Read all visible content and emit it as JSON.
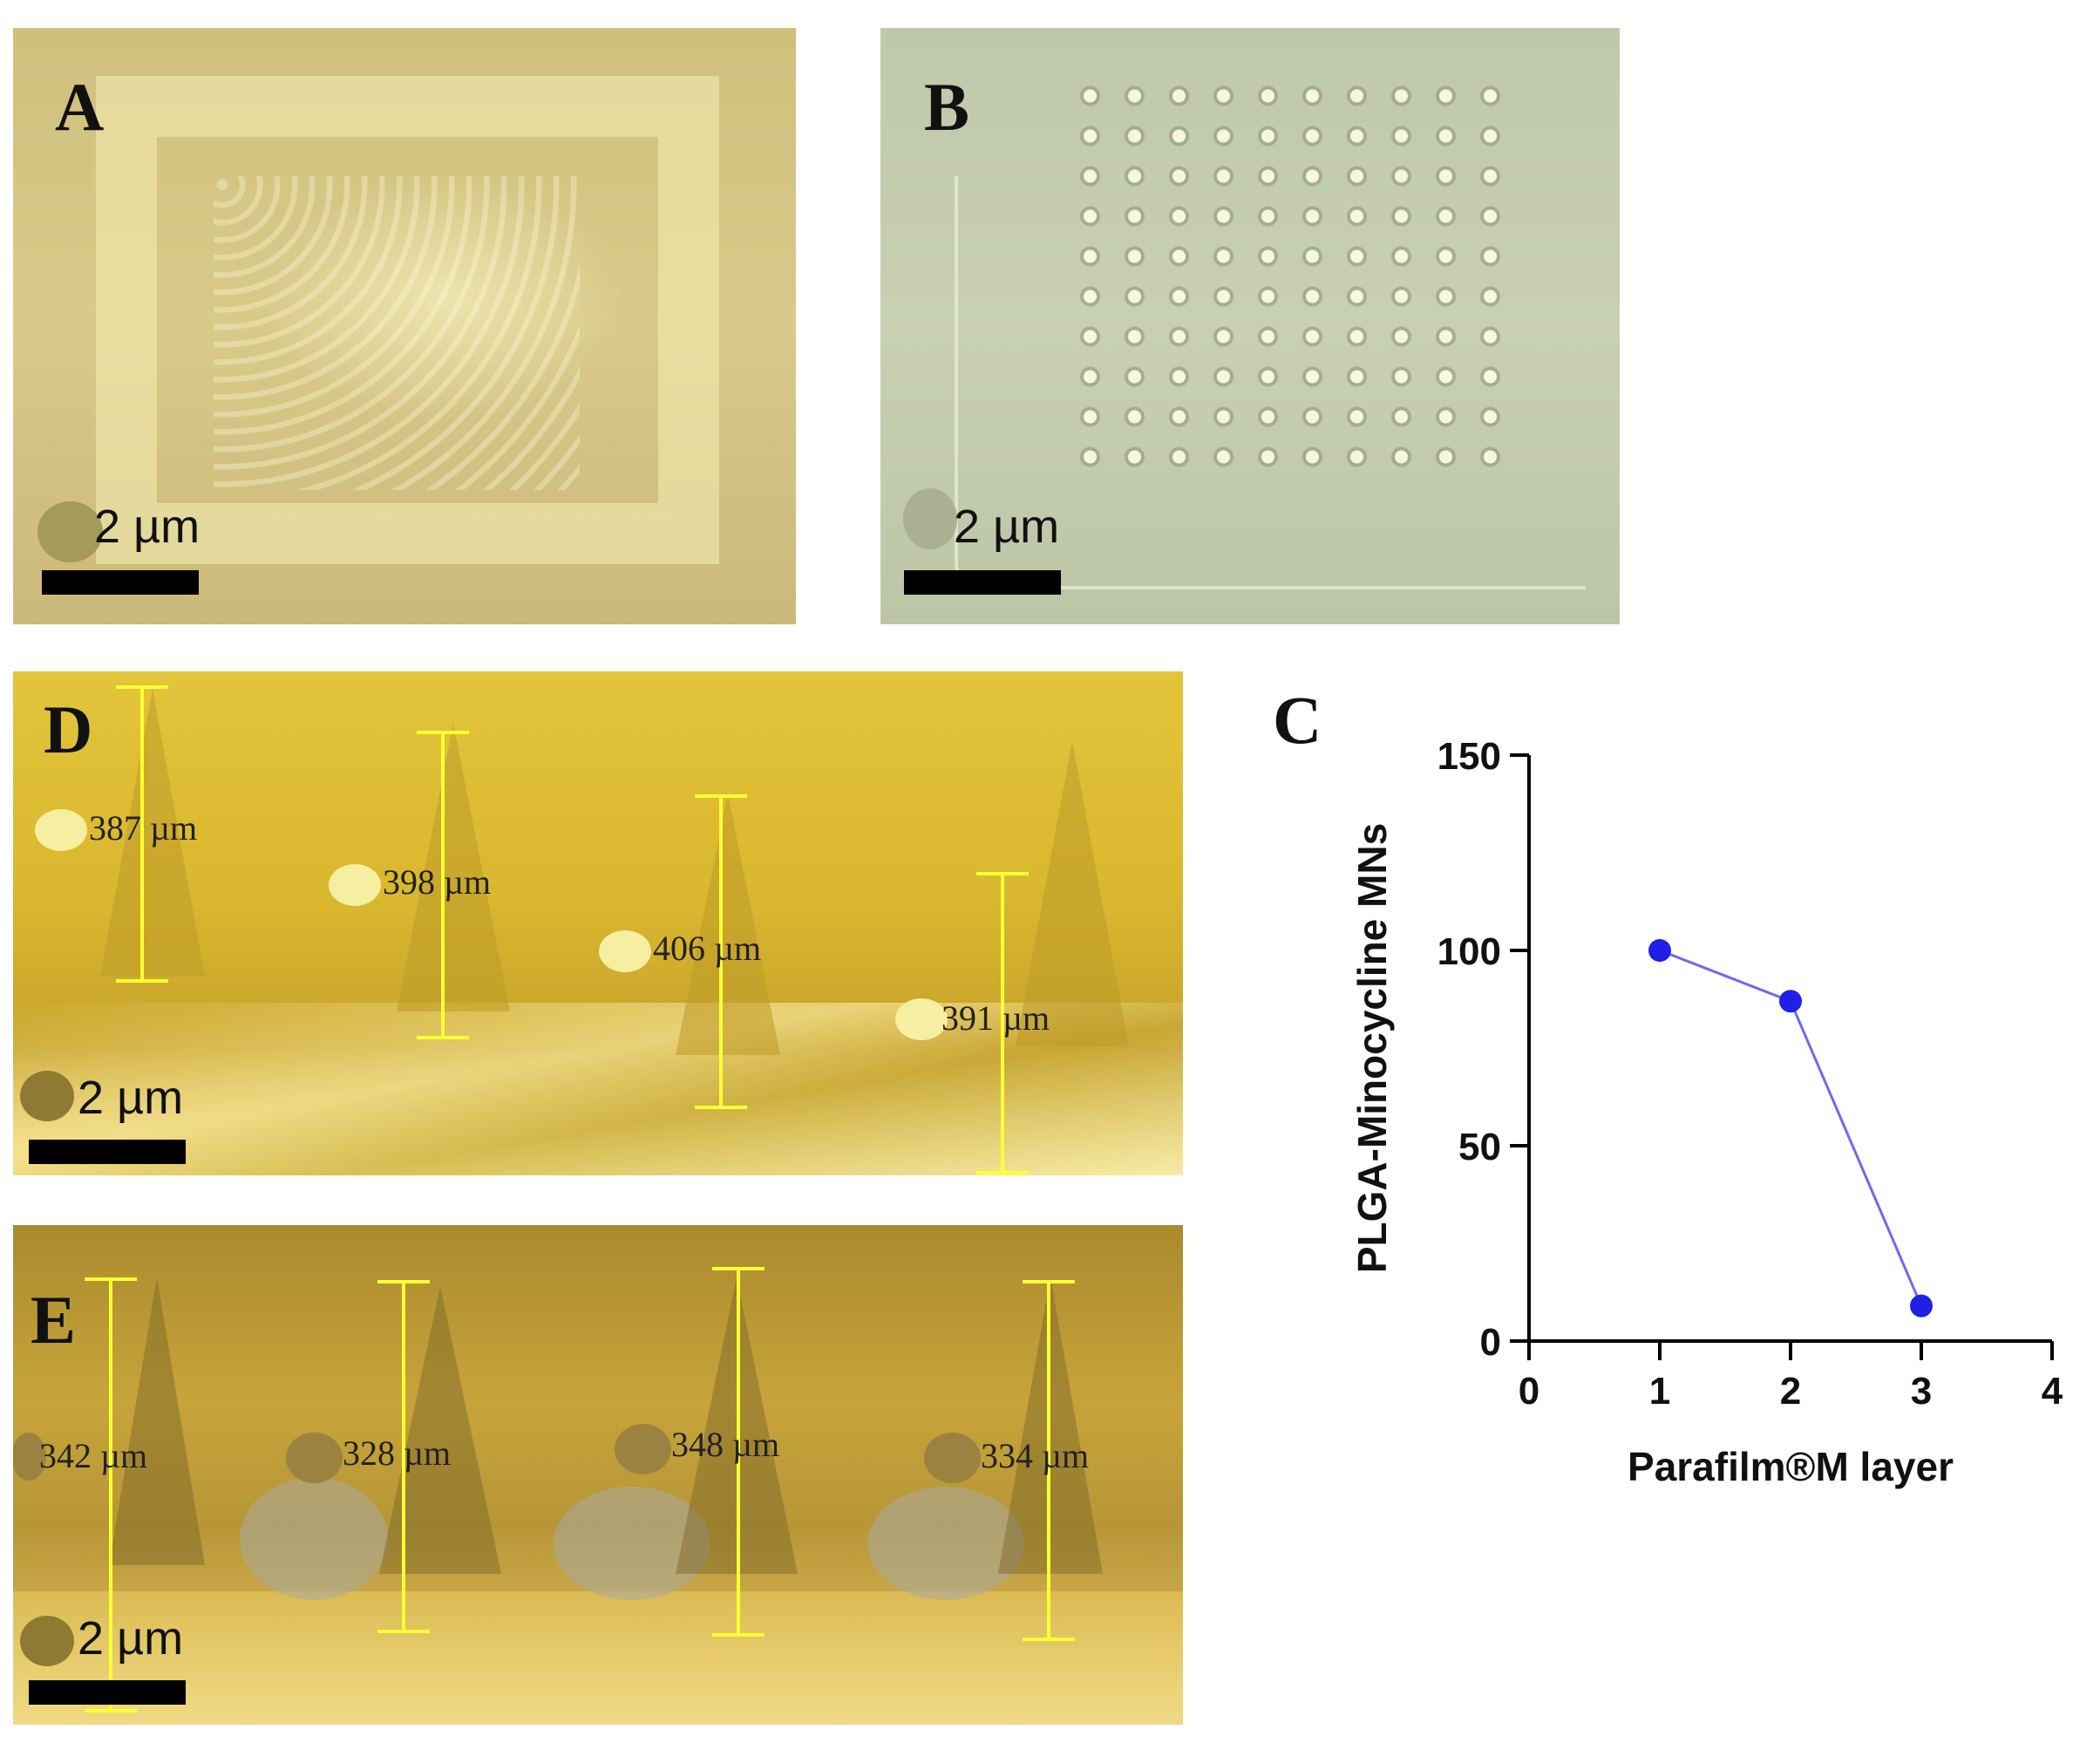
{
  "panels": {
    "a": {
      "letter": "A",
      "scale_label": "2 µm"
    },
    "b": {
      "letter": "B",
      "scale_label": "2 µm"
    },
    "d": {
      "letter": "D",
      "scale_label": "2 µm",
      "measurements": [
        "387 µm",
        "398 µm",
        "406 µm",
        "391 µm"
      ]
    },
    "e": {
      "letter": "E",
      "scale_label": "2 µm",
      "measurements": [
        "342 µm",
        "328 µm",
        "348 µm",
        "334 µm"
      ]
    }
  },
  "colors": {
    "series": "#1f1fe6",
    "line": "#6b6bf0",
    "axis": "#000000",
    "measure_bar": "#ffff33"
  },
  "chart_data": {
    "type": "line",
    "panel_letter": "C",
    "xlabel": "Parafilm®M layer",
    "ylabel": "PLGA-Minocycline MNs",
    "xlim": [
      0,
      4
    ],
    "ylim": [
      0,
      150
    ],
    "xticks": [
      0,
      1,
      2,
      3,
      4
    ],
    "yticks": [
      0,
      50,
      100,
      150
    ],
    "grid": false,
    "x": [
      1,
      2,
      3
    ],
    "series": [
      {
        "values": [
          100,
          87,
          9
        ]
      }
    ]
  }
}
